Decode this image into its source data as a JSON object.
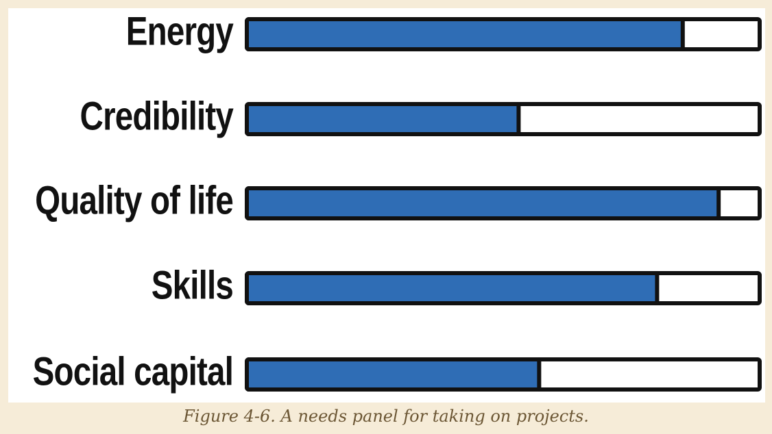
{
  "chart_data": {
    "type": "progress",
    "categories": [
      "Energy",
      "Credibility",
      "Quality of life",
      "Skills",
      "Social capital"
    ],
    "values": [
      85,
      53,
      92,
      80,
      57
    ],
    "color": "#2f6db5",
    "xlim": [
      0,
      100
    ],
    "caption": "Figure 4-6. A needs panel for taking on projects."
  }
}
